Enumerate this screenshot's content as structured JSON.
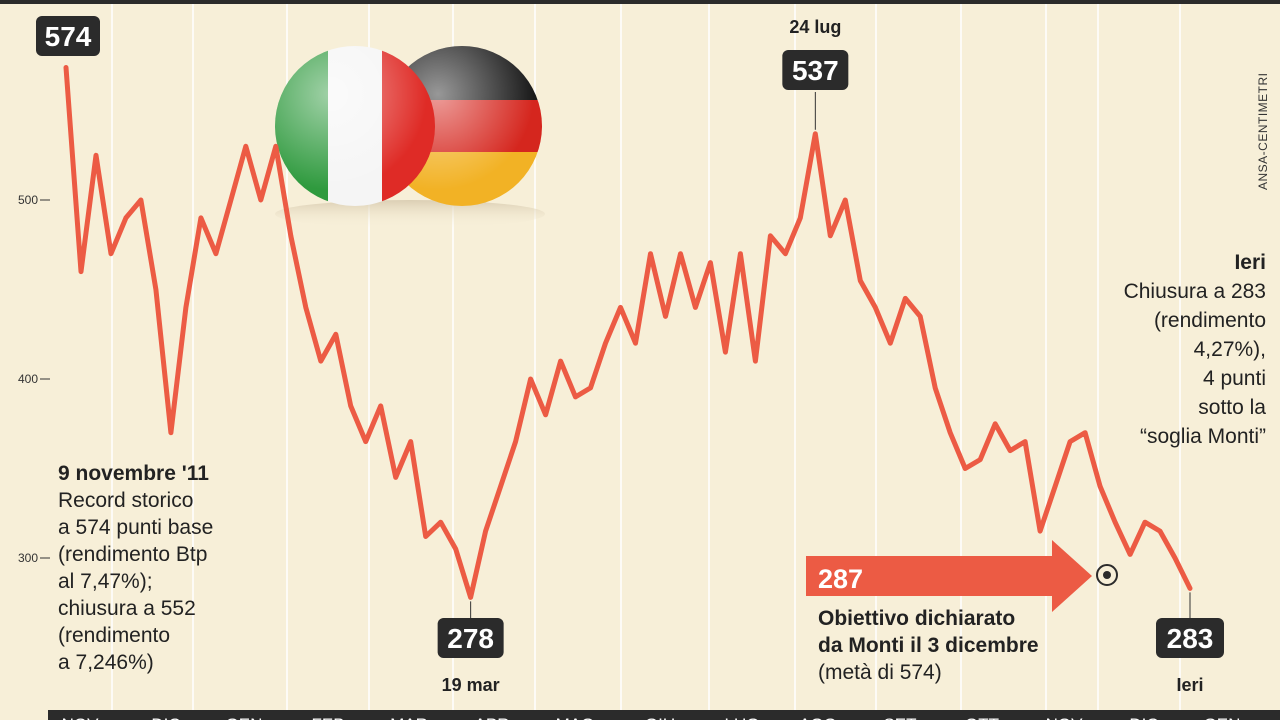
{
  "source": "ANSA-CENTIMETRI",
  "colors": {
    "background": "#f7efd8",
    "line": "#ec5b44",
    "label_box": "#2b2b2b",
    "grid": "#ffffff"
  },
  "chart_data": {
    "type": "line",
    "title": "",
    "xlabel": "",
    "ylabel": "",
    "ylim": [
      275,
      580
    ],
    "y_ticks": [
      "300",
      "400",
      "500"
    ],
    "x_ticks": [
      "NOV",
      "DIC",
      "GEN",
      "FEB",
      "MAR",
      "APR",
      "MAG",
      "GIU",
      "LUG",
      "AGO",
      "SET",
      "OTT",
      "NOV",
      "DIC",
      "GEN"
    ],
    "series": [
      {
        "values": [
          574,
          460,
          525,
          470,
          490,
          500,
          450,
          370,
          440,
          490,
          470,
          500,
          530,
          500,
          530,
          480,
          440,
          410,
          425,
          385,
          365,
          385,
          345,
          365,
          312,
          320,
          305,
          278,
          315,
          340,
          365,
          400,
          380,
          410,
          390,
          395,
          420,
          440,
          420,
          470,
          435,
          470,
          440,
          465,
          415,
          470,
          410,
          480,
          470,
          490,
          537,
          480,
          500,
          455,
          440,
          420,
          445,
          435,
          395,
          370,
          350,
          355,
          375,
          360,
          365,
          315,
          340,
          365,
          370,
          340,
          320,
          302,
          320,
          315,
          300,
          283
        ]
      }
    ],
    "annotations": {
      "max_start": {
        "value": "574"
      },
      "peak": {
        "value": "537",
        "date": "24 lug"
      },
      "low": {
        "value": "278",
        "date": "19 mar"
      },
      "last": {
        "value": "283",
        "date": "Ieri"
      },
      "target": {
        "value": "287"
      }
    }
  },
  "texts": {
    "left_head": "9 novembre '11",
    "left_lines": [
      "Record storico",
      "a 574 punti base",
      "(rendimento Btp",
      "al 7,47%);",
      "chiusura a 552",
      "(rendimento",
      "a 7,246%)"
    ],
    "right_head": "Ieri",
    "right_lines": [
      "Chiusura a 283",
      "(rendimento",
      "4,27%),",
      "4 punti",
      "sotto la",
      "“soglia Monti”"
    ],
    "target_lines": [
      "Obiettivo dichiarato",
      "da Monti il 3 dicembre"
    ],
    "target_note": "(metà di 574)"
  }
}
